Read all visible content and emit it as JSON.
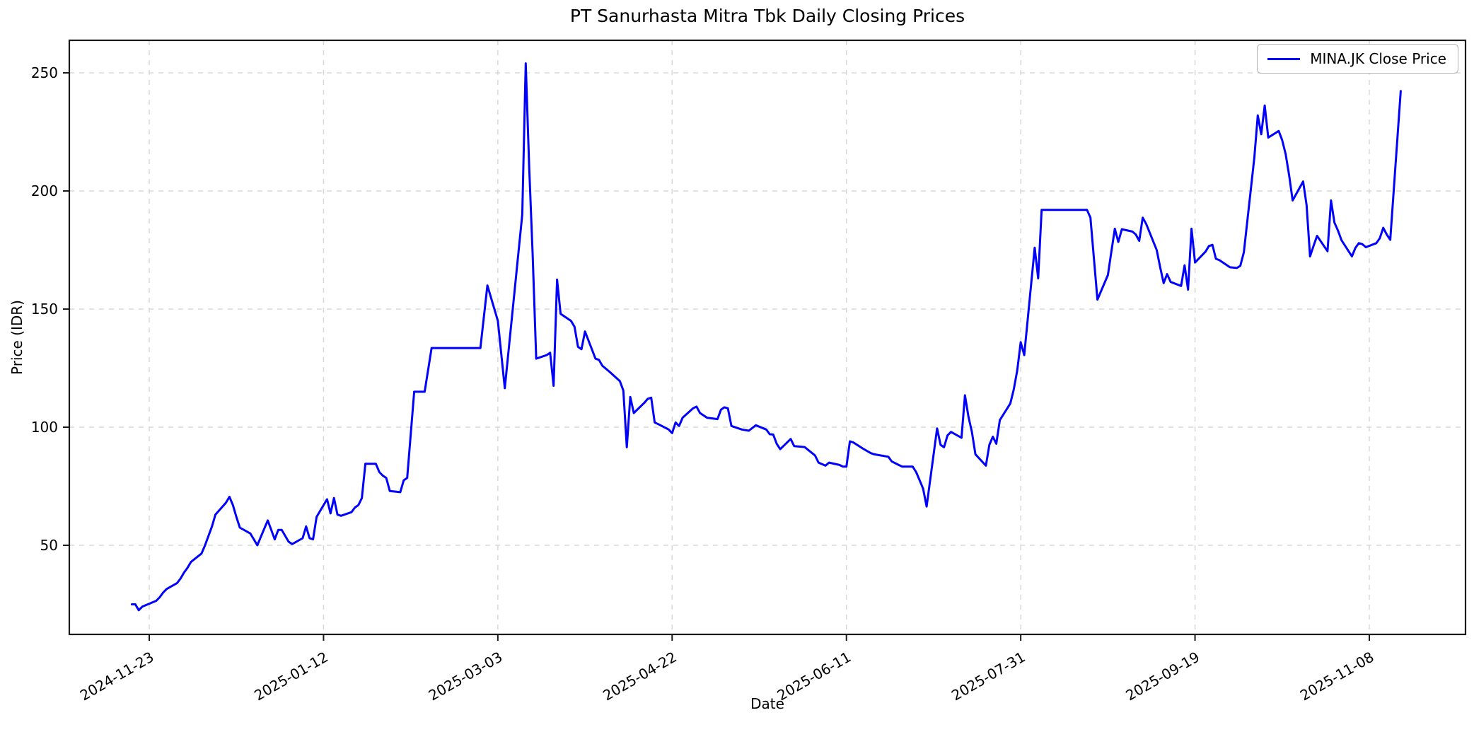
{
  "title": "PT Sanurhasta Mitra Tbk Daily Closing Prices",
  "x_axis_label": "Date",
  "y_axis_label": "Price (IDR)",
  "legend": {
    "label": "MINA.JK Close Price"
  },
  "colors": {
    "line": "#0000ff",
    "grid": "#d9d9d9",
    "spine": "#1a1a1a",
    "tick_text": "#000000",
    "legend_border": "#b3b3b3",
    "background": "#ffffff"
  },
  "chart_data": {
    "type": "line",
    "title": "PT Sanurhasta Mitra Tbk Daily Closing Prices",
    "xlabel": "Date",
    "ylabel": "Price (IDR)",
    "series_name": "MINA.JK Close Price",
    "legend_position": "upper right",
    "grid": true,
    "grid_style": "dashed",
    "line_color": "#0000ff",
    "y_ticks": [
      50,
      100,
      150,
      200,
      250
    ],
    "ylim": [
      12,
      264
    ],
    "x_ticks": [
      "2024-11-23",
      "2025-01-12",
      "2025-03-03",
      "2025-04-22",
      "2025-06-11",
      "2025-07-31",
      "2025-09-19",
      "2025-11-08"
    ],
    "xlim": [
      "2024-10-31",
      "2025-12-06"
    ],
    "x_tick_interval_days": 50,
    "points": [
      [
        "2024-11-18",
        25
      ],
      [
        "2024-11-19",
        25
      ],
      [
        "2024-11-20",
        22.5
      ],
      [
        "2024-11-21",
        24
      ],
      [
        "2024-11-25",
        26.5
      ],
      [
        "2024-11-26",
        28
      ],
      [
        "2024-11-27",
        30
      ],
      [
        "2024-11-28",
        31.5
      ],
      [
        "2024-12-01",
        34
      ],
      [
        "2024-12-02",
        36
      ],
      [
        "2024-12-03",
        38.5
      ],
      [
        "2024-12-04",
        40.5
      ],
      [
        "2024-12-05",
        43
      ],
      [
        "2024-12-08",
        46.5
      ],
      [
        "2024-12-09",
        50
      ],
      [
        "2024-12-10",
        54
      ],
      [
        "2024-12-11",
        58
      ],
      [
        "2024-12-12",
        63
      ],
      [
        "2024-12-15",
        68
      ],
      [
        "2024-12-16",
        70.5
      ],
      [
        "2024-12-17",
        67
      ],
      [
        "2024-12-18",
        62
      ],
      [
        "2024-12-19",
        57.5
      ],
      [
        "2024-12-22",
        55
      ],
      [
        "2024-12-23",
        52.5
      ],
      [
        "2024-12-24",
        50
      ],
      [
        "2024-12-26",
        57
      ],
      [
        "2024-12-27",
        60.5
      ],
      [
        "2024-12-29",
        52.5
      ],
      [
        "2024-12-30",
        56.5
      ],
      [
        "2024-12-31",
        56.5
      ],
      [
        "2025-01-02",
        51.5
      ],
      [
        "2025-01-03",
        50.5
      ],
      [
        "2025-01-06",
        53
      ],
      [
        "2025-01-07",
        58
      ],
      [
        "2025-01-08",
        53
      ],
      [
        "2025-01-09",
        52.5
      ],
      [
        "2025-01-10",
        62
      ],
      [
        "2025-01-13",
        69.5
      ],
      [
        "2025-01-14",
        63.5
      ],
      [
        "2025-01-15",
        70
      ],
      [
        "2025-01-16",
        63
      ],
      [
        "2025-01-17",
        62.5
      ],
      [
        "2025-01-20",
        64
      ],
      [
        "2025-01-21",
        66
      ],
      [
        "2025-01-22",
        67
      ],
      [
        "2025-01-23",
        70
      ],
      [
        "2025-01-24",
        84.5
      ],
      [
        "2025-01-27",
        84.5
      ],
      [
        "2025-01-28",
        81
      ],
      [
        "2025-01-29",
        79.5
      ],
      [
        "2025-01-30",
        78.5
      ],
      [
        "2025-01-31",
        73
      ],
      [
        "2025-02-03",
        72.5
      ],
      [
        "2025-02-04",
        77.5
      ],
      [
        "2025-02-05",
        78.5
      ],
      [
        "2025-02-07",
        115
      ],
      [
        "2025-02-10",
        115
      ],
      [
        "2025-02-12",
        133.5
      ],
      [
        "2025-02-20",
        133.5
      ],
      [
        "2025-02-26",
        133.5
      ],
      [
        "2025-02-28",
        160
      ],
      [
        "2025-03-03",
        145
      ],
      [
        "2025-03-05",
        116.5
      ],
      [
        "2025-03-10",
        190
      ],
      [
        "2025-03-11",
        254
      ],
      [
        "2025-03-12",
        210
      ],
      [
        "2025-03-13",
        173
      ],
      [
        "2025-03-14",
        129
      ],
      [
        "2025-03-17",
        130.5
      ],
      [
        "2025-03-18",
        131.5
      ],
      [
        "2025-03-19",
        117.5
      ],
      [
        "2025-03-20",
        162.5
      ],
      [
        "2025-03-21",
        148
      ],
      [
        "2025-03-24",
        145
      ],
      [
        "2025-03-25",
        142.5
      ],
      [
        "2025-03-26",
        134
      ],
      [
        "2025-03-27",
        133
      ],
      [
        "2025-03-28",
        140.5
      ],
      [
        "2025-03-31",
        129
      ],
      [
        "2025-04-01",
        128.5
      ],
      [
        "2025-04-02",
        126
      ],
      [
        "2025-04-04",
        123.5
      ],
      [
        "2025-04-07",
        119.5
      ],
      [
        "2025-04-08",
        115.5
      ],
      [
        "2025-04-09",
        91.5
      ],
      [
        "2025-04-10",
        112.8
      ],
      [
        "2025-04-11",
        106
      ],
      [
        "2025-04-14",
        110.3
      ],
      [
        "2025-04-15",
        112
      ],
      [
        "2025-04-16",
        112.5
      ],
      [
        "2025-04-17",
        102
      ],
      [
        "2025-04-18",
        101.3
      ],
      [
        "2025-04-21",
        99
      ],
      [
        "2025-04-22",
        97.5
      ],
      [
        "2025-04-23",
        102
      ],
      [
        "2025-04-24",
        100.5
      ],
      [
        "2025-04-25",
        104
      ],
      [
        "2025-04-28",
        108
      ],
      [
        "2025-04-29",
        108.7
      ],
      [
        "2025-04-30",
        106
      ],
      [
        "2025-05-02",
        104
      ],
      [
        "2025-05-05",
        103.4
      ],
      [
        "2025-05-06",
        107.4
      ],
      [
        "2025-05-07",
        108.4
      ],
      [
        "2025-05-08",
        108
      ],
      [
        "2025-05-09",
        100.5
      ],
      [
        "2025-05-12",
        99
      ],
      [
        "2025-05-14",
        98.5
      ],
      [
        "2025-05-16",
        100.8
      ],
      [
        "2025-05-19",
        99
      ],
      [
        "2025-05-20",
        97
      ],
      [
        "2025-05-21",
        96.9
      ],
      [
        "2025-05-22",
        93
      ],
      [
        "2025-05-23",
        90.7
      ],
      [
        "2025-05-26",
        95
      ],
      [
        "2025-05-27",
        92
      ],
      [
        "2025-05-30",
        91.6
      ],
      [
        "2025-06-02",
        88
      ],
      [
        "2025-06-03",
        85
      ],
      [
        "2025-06-05",
        83.7
      ],
      [
        "2025-06-06",
        85
      ],
      [
        "2025-06-09",
        84
      ],
      [
        "2025-06-10",
        83.3
      ],
      [
        "2025-06-11",
        83.3
      ],
      [
        "2025-06-12",
        94
      ],
      [
        "2025-06-13",
        93.5
      ],
      [
        "2025-06-16",
        90.7
      ],
      [
        "2025-06-18",
        89
      ],
      [
        "2025-06-19",
        88.5
      ],
      [
        "2025-06-23",
        87.5
      ],
      [
        "2025-06-24",
        85.5
      ],
      [
        "2025-06-26",
        84
      ],
      [
        "2025-06-27",
        83.3
      ],
      [
        "2025-06-30",
        83.3
      ],
      [
        "2025-07-01",
        81
      ],
      [
        "2025-07-02",
        77.5
      ],
      [
        "2025-07-03",
        74
      ],
      [
        "2025-07-04",
        66.4
      ],
      [
        "2025-07-07",
        99.5
      ],
      [
        "2025-07-08",
        92.5
      ],
      [
        "2025-07-09",
        91.5
      ],
      [
        "2025-07-10",
        96.5
      ],
      [
        "2025-07-11",
        98
      ],
      [
        "2025-07-14",
        95.5
      ],
      [
        "2025-07-15",
        113.5
      ],
      [
        "2025-07-16",
        104.5
      ],
      [
        "2025-07-17",
        98
      ],
      [
        "2025-07-18",
        88.5
      ],
      [
        "2025-07-21",
        83.7
      ],
      [
        "2025-07-22",
        92.5
      ],
      [
        "2025-07-23",
        96
      ],
      [
        "2025-07-24",
        93
      ],
      [
        "2025-07-25",
        103
      ],
      [
        "2025-07-28",
        110
      ],
      [
        "2025-07-29",
        116
      ],
      [
        "2025-07-30",
        124
      ],
      [
        "2025-07-31",
        136
      ],
      [
        "2025-08-01",
        130.5
      ],
      [
        "2025-08-04",
        176
      ],
      [
        "2025-08-05",
        163
      ],
      [
        "2025-08-06",
        192
      ],
      [
        "2025-08-19",
        192
      ],
      [
        "2025-08-20",
        188.7
      ],
      [
        "2025-08-22",
        154
      ],
      [
        "2025-08-25",
        164.4
      ],
      [
        "2025-08-26",
        174.3
      ],
      [
        "2025-08-27",
        184
      ],
      [
        "2025-08-28",
        178.4
      ],
      [
        "2025-08-29",
        183.8
      ],
      [
        "2025-09-01",
        182.8
      ],
      [
        "2025-09-02",
        181.6
      ],
      [
        "2025-09-03",
        178.9
      ],
      [
        "2025-09-04",
        188.7
      ],
      [
        "2025-09-05",
        186
      ],
      [
        "2025-09-08",
        175
      ],
      [
        "2025-09-09",
        167.7
      ],
      [
        "2025-09-10",
        161
      ],
      [
        "2025-09-11",
        164.8
      ],
      [
        "2025-09-12",
        161.5
      ],
      [
        "2025-09-15",
        159.8
      ],
      [
        "2025-09-16",
        168.5
      ],
      [
        "2025-09-17",
        158.2
      ],
      [
        "2025-09-18",
        184
      ],
      [
        "2025-09-19",
        169.7
      ],
      [
        "2025-09-22",
        174.3
      ],
      [
        "2025-09-23",
        176.7
      ],
      [
        "2025-09-24",
        177.2
      ],
      [
        "2025-09-25",
        171.3
      ],
      [
        "2025-09-26",
        170.7
      ],
      [
        "2025-09-29",
        167.7
      ],
      [
        "2025-10-01",
        167.4
      ],
      [
        "2025-10-02",
        168.3
      ],
      [
        "2025-10-03",
        174
      ],
      [
        "2025-10-06",
        214
      ],
      [
        "2025-10-07",
        232
      ],
      [
        "2025-10-08",
        224
      ],
      [
        "2025-10-09",
        236.2
      ],
      [
        "2025-10-10",
        222.6
      ],
      [
        "2025-10-13",
        225.4
      ],
      [
        "2025-10-14",
        221.5
      ],
      [
        "2025-10-15",
        215.6
      ],
      [
        "2025-10-16",
        206.7
      ],
      [
        "2025-10-17",
        196
      ],
      [
        "2025-10-20",
        204
      ],
      [
        "2025-10-21",
        194
      ],
      [
        "2025-10-22",
        172.3
      ],
      [
        "2025-10-23",
        176.7
      ],
      [
        "2025-10-24",
        181
      ],
      [
        "2025-10-27",
        174.5
      ],
      [
        "2025-10-28",
        196
      ],
      [
        "2025-10-29",
        186.6
      ],
      [
        "2025-10-30",
        183.3
      ],
      [
        "2025-10-31",
        179.2
      ],
      [
        "2025-11-03",
        172.3
      ],
      [
        "2025-11-04",
        175.9
      ],
      [
        "2025-11-05",
        177.9
      ],
      [
        "2025-11-06",
        177.5
      ],
      [
        "2025-11-07",
        176.2
      ],
      [
        "2025-11-10",
        177.9
      ],
      [
        "2025-11-11",
        180
      ],
      [
        "2025-11-12",
        184.4
      ],
      [
        "2025-11-13",
        181.6
      ],
      [
        "2025-11-14",
        179.3
      ],
      [
        "2025-11-17",
        242.3
      ]
    ]
  }
}
